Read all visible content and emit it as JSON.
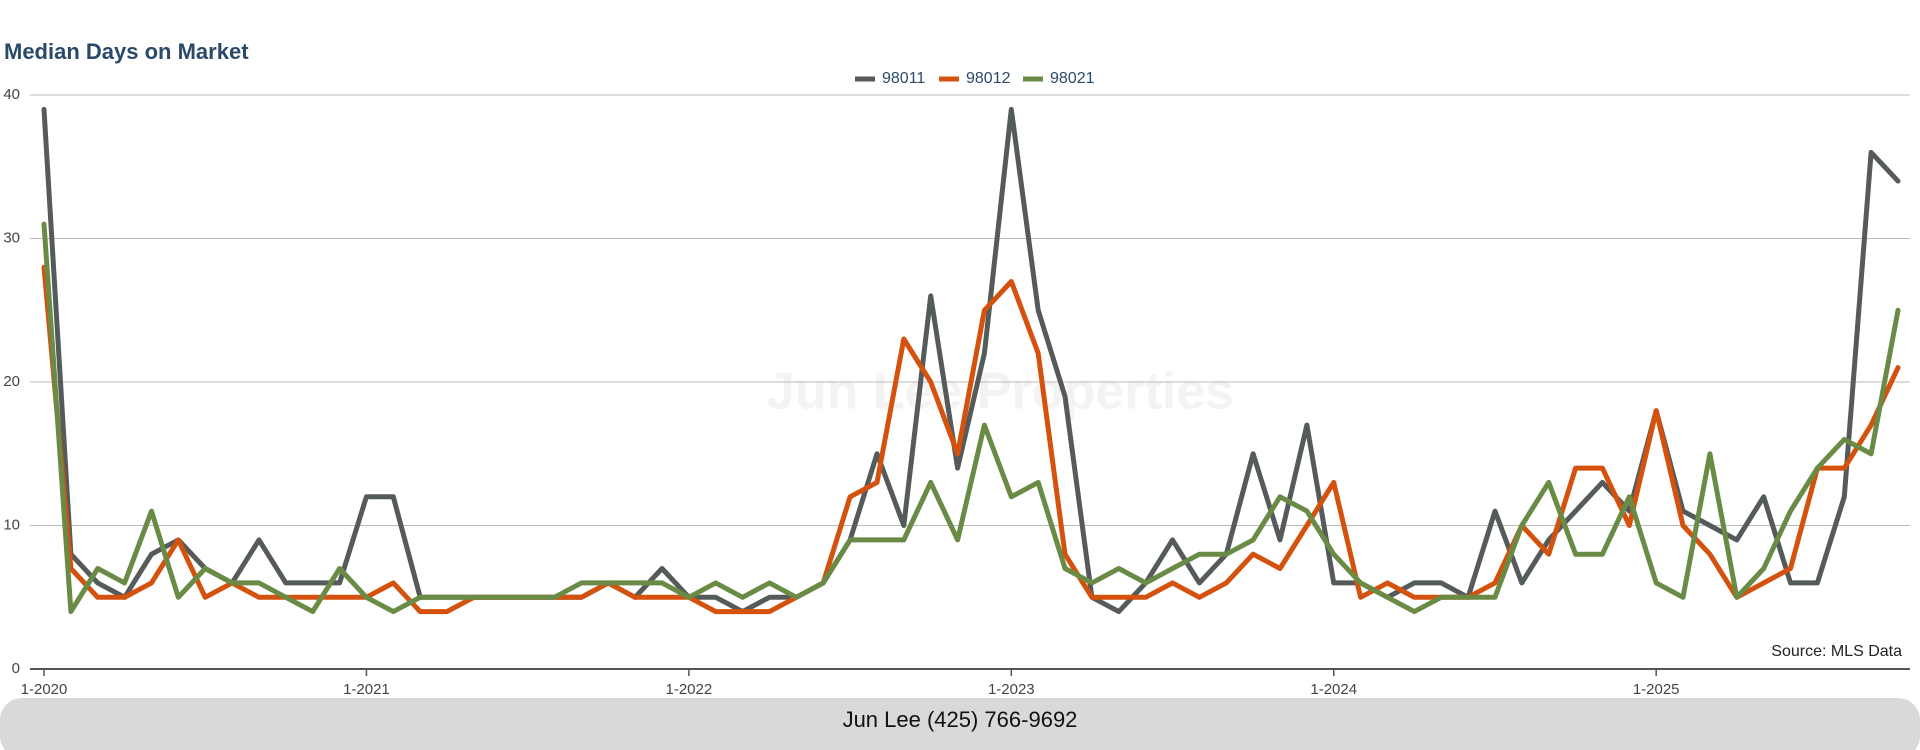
{
  "chart_data": {
    "type": "line",
    "title": "Median Days on Market",
    "categories": [
      "1-2020",
      null,
      null,
      null,
      null,
      null,
      null,
      null,
      null,
      null,
      null,
      null,
      "1-2021",
      null,
      null,
      null,
      null,
      null,
      null,
      null,
      null,
      null,
      null,
      null,
      "1-2022",
      null,
      null,
      null,
      null,
      null,
      null,
      null,
      null,
      null,
      null,
      null,
      "1-2023",
      null,
      null,
      null,
      null,
      null,
      null,
      null,
      null,
      null,
      null,
      null,
      "1-2024",
      null,
      null,
      null,
      null,
      null,
      null,
      null,
      null,
      null,
      null,
      null,
      "1-2025",
      null,
      null,
      null,
      null,
      null,
      null,
      null,
      null,
      null
    ],
    "series": [
      {
        "name": "98011",
        "color": "#555b5b",
        "values": [
          39,
          8,
          6,
          5,
          8,
          9,
          7,
          6,
          9,
          6,
          6,
          6,
          12,
          12,
          5,
          5,
          5,
          5,
          5,
          5,
          5,
          6,
          5,
          7,
          5,
          5,
          4,
          5,
          5,
          6,
          9,
          15,
          10,
          26,
          14,
          22,
          39,
          25,
          19,
          5,
          4,
          6,
          9,
          6,
          8,
          15,
          9,
          17,
          6,
          6,
          5,
          6,
          6,
          5,
          11,
          6,
          9,
          11,
          13,
          11,
          18,
          11,
          10,
          9,
          12,
          6,
          6,
          12,
          36,
          34
        ]
      },
      {
        "name": "98012",
        "color": "#d4520d",
        "values": [
          28,
          7,
          5,
          5,
          6,
          9,
          5,
          6,
          5,
          5,
          5,
          5,
          5,
          6,
          4,
          4,
          5,
          5,
          5,
          5,
          5,
          6,
          5,
          5,
          5,
          4,
          4,
          4,
          5,
          6,
          12,
          13,
          23,
          20,
          15,
          25,
          27,
          22,
          8,
          5,
          5,
          5,
          6,
          5,
          6,
          8,
          7,
          10,
          13,
          5,
          6,
          5,
          5,
          5,
          6,
          10,
          8,
          14,
          14,
          10,
          18,
          10,
          8,
          5,
          6,
          7,
          14,
          14,
          17,
          21
        ]
      },
      {
        "name": "98021",
        "color": "#6a8b45",
        "values": [
          31,
          4,
          7,
          6,
          11,
          5,
          7,
          6,
          6,
          5,
          4,
          7,
          5,
          4,
          5,
          5,
          5,
          5,
          5,
          5,
          6,
          6,
          6,
          6,
          5,
          6,
          5,
          6,
          5,
          6,
          9,
          9,
          9,
          13,
          9,
          17,
          12,
          13,
          7,
          6,
          7,
          6,
          7,
          8,
          8,
          9,
          12,
          11,
          8,
          6,
          5,
          4,
          5,
          5,
          5,
          10,
          13,
          8,
          8,
          12,
          6,
          5,
          15,
          5,
          7,
          11,
          14,
          16,
          15,
          25
        ]
      }
    ],
    "ylim": [
      0,
      40
    ],
    "yticks": [
      0,
      10,
      20,
      30,
      40
    ],
    "grid": true,
    "source": "Source: MLS Data",
    "watermark": "Jun Lee Properties"
  },
  "footer": {
    "text": "Jun Lee (425) 766-9692"
  }
}
